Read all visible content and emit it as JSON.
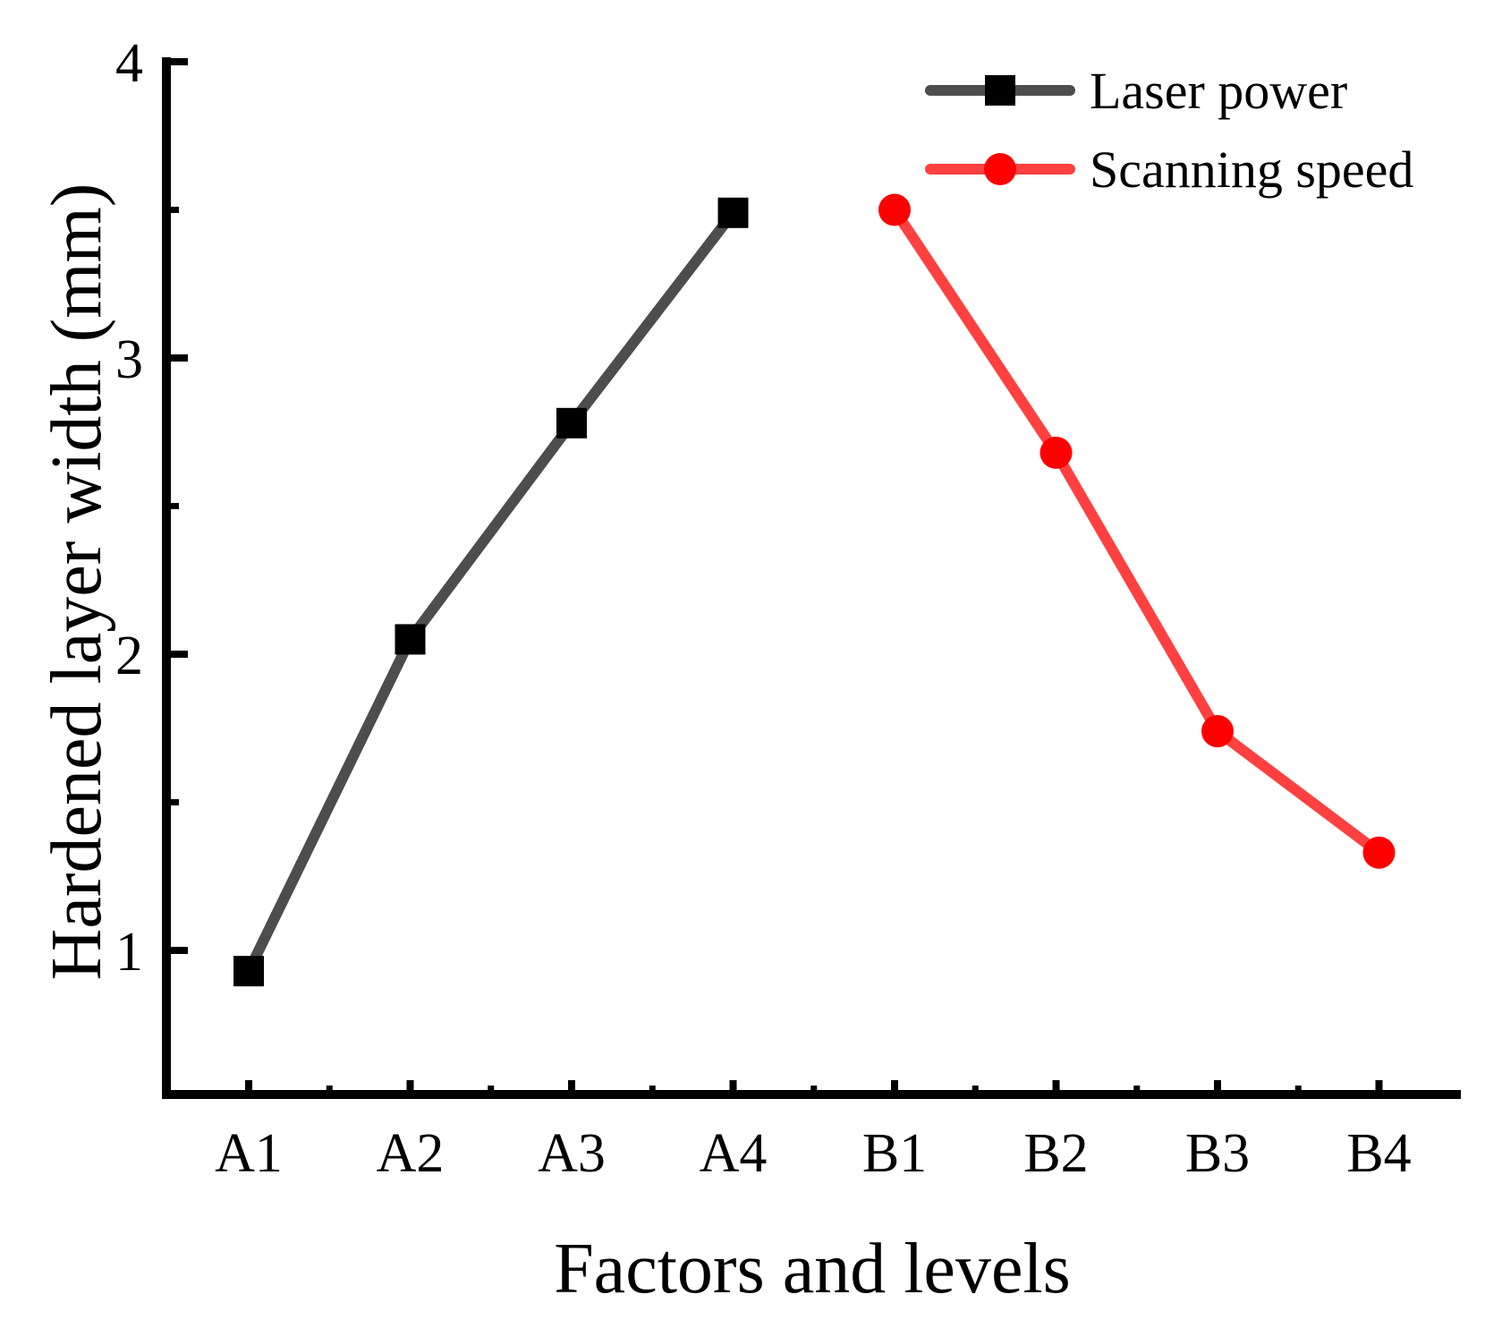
{
  "chart_data": {
    "type": "line",
    "title": "",
    "xlabel": "Factors and levels",
    "ylabel": "Hardened layer width (mm)",
    "categories": [
      "A1",
      "A2",
      "A3",
      "A4",
      "B1",
      "B2",
      "B3",
      "B4"
    ],
    "ylim": [
      0.5,
      4
    ],
    "yticks": [
      1,
      2,
      3,
      4
    ],
    "y_minor_ticks": [
      1.5,
      2.5,
      3.5
    ],
    "grid": false,
    "legend_position": "top-right",
    "series": [
      {
        "name": "Laser power",
        "color": "#4d4d4d",
        "marker_color": "#000000",
        "marker": "square",
        "x": [
          "A1",
          "A2",
          "A3",
          "A4"
        ],
        "values": [
          0.93,
          2.05,
          2.78,
          3.49
        ]
      },
      {
        "name": "Scanning speed",
        "color": "#ff4040",
        "marker_color": "#ff0000",
        "marker": "circle",
        "x": [
          "B1",
          "B2",
          "B3",
          "B4"
        ],
        "values": [
          3.5,
          2.68,
          1.74,
          1.33
        ]
      }
    ]
  }
}
